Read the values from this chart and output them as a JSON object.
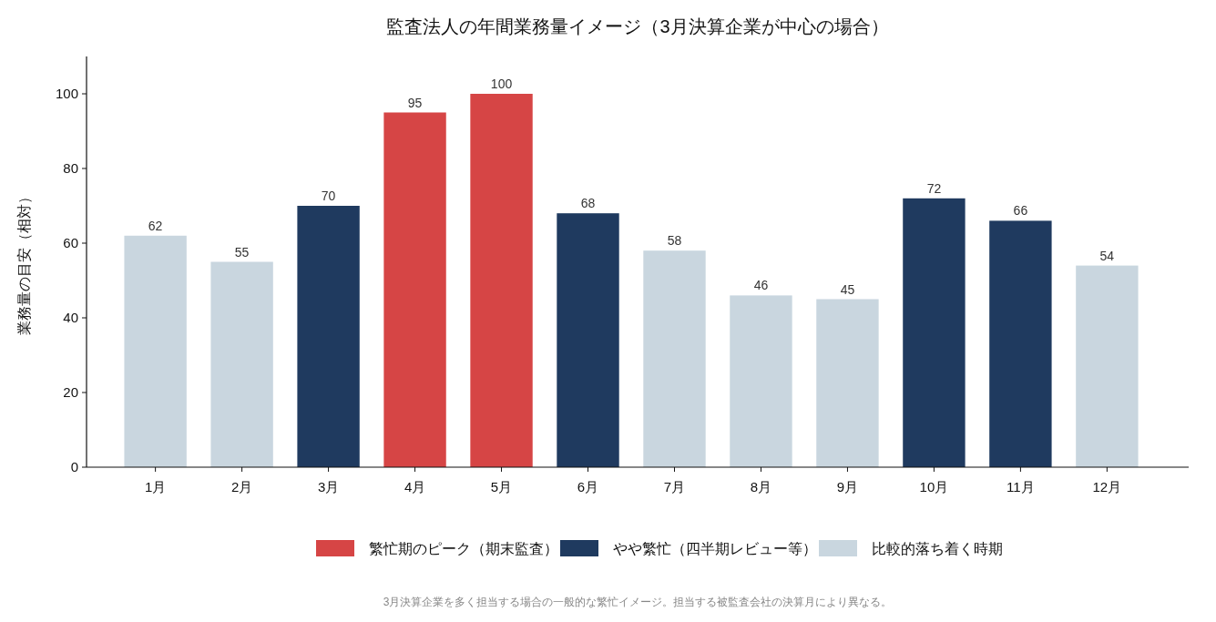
{
  "chart_data": {
    "type": "bar",
    "title": "監査法人の年間業務量イメージ（3月決算企業が中心の場合）",
    "ylabel": "業務量の目安（相対）",
    "categories": [
      "1月",
      "2月",
      "3月",
      "4月",
      "5月",
      "6月",
      "7月",
      "8月",
      "9月",
      "10月",
      "11月",
      "12月"
    ],
    "series": [
      {
        "name": "繁忙期のピーク（期末監査）",
        "color": "#d64545",
        "values": [
          null,
          null,
          null,
          95,
          100,
          null,
          null,
          null,
          null,
          null,
          null,
          null
        ]
      },
      {
        "name": "やや繁忙（四半期レビュー等）",
        "color": "#1f3a5f",
        "values": [
          null,
          null,
          70,
          null,
          null,
          68,
          null,
          null,
          null,
          72,
          66,
          null
        ]
      },
      {
        "name": "比較的落ち着く時期",
        "color": "#c9d6df",
        "values": [
          62,
          55,
          null,
          null,
          null,
          null,
          58,
          46,
          45,
          null,
          null,
          54
        ]
      }
    ],
    "ylim": [
      0,
      110
    ],
    "yticks": [
      0,
      20,
      40,
      60,
      80,
      100
    ],
    "data_labels": true,
    "grid": false,
    "legend": "bottom",
    "annotations": [
      "3月決算企業を多く担当する場合の一般的な繁忙イメージ。担当する被監査会社の決算月により異なる。"
    ]
  }
}
